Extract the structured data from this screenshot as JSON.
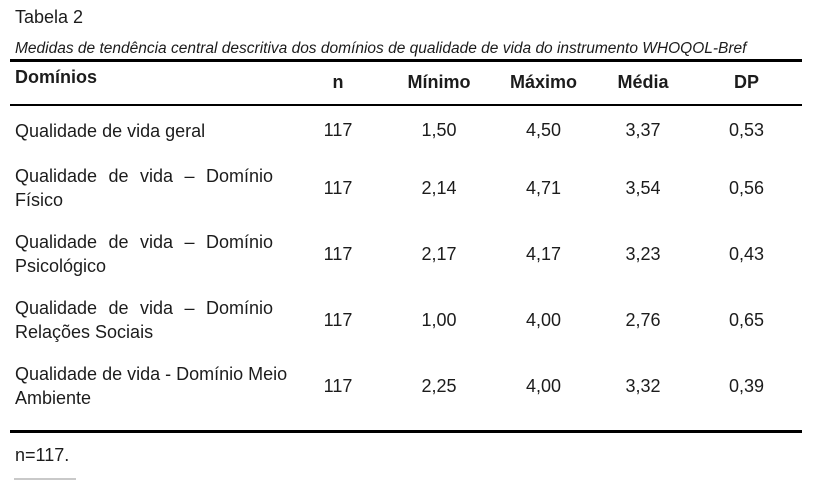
{
  "document": {
    "table_label": "Tabela 2",
    "table_caption": "Medidas de tendência central descritiva dos domínios de qualidade de vida do instrumento WHOQOL-Bref",
    "footnote": "n=117."
  },
  "table": {
    "headers": {
      "dominios": "Domínios",
      "n": "n",
      "minimo": "Mínimo",
      "maximo": "Máximo",
      "media": "Média",
      "dp": "DP"
    },
    "rows": [
      {
        "dominio": "Qualidade de vida geral",
        "n": "117",
        "minimo": "1,50",
        "maximo": "4,50",
        "media": "3,37",
        "dp": "0,53"
      },
      {
        "dominio": "Qualidade de vida – Domínio Físico",
        "n": "117",
        "minimo": "2,14",
        "maximo": "4,71",
        "media": "3,54",
        "dp": "0,56"
      },
      {
        "dominio": "Qualidade de vida – Domínio Psicológico",
        "n": "117",
        "minimo": "2,17",
        "maximo": "4,17",
        "media": "3,23",
        "dp": "0,43"
      },
      {
        "dominio": "Qualidade de vida – Domínio Relações Sociais",
        "n": "117",
        "minimo": "1,00",
        "maximo": "4,00",
        "media": "2,76",
        "dp": "0,65"
      },
      {
        "dominio": "Qualidade de vida - Domínio Meio Ambiente",
        "n": "117",
        "minimo": "2,25",
        "maximo": "4,00",
        "media": "3,32",
        "dp": "0,39"
      }
    ]
  }
}
